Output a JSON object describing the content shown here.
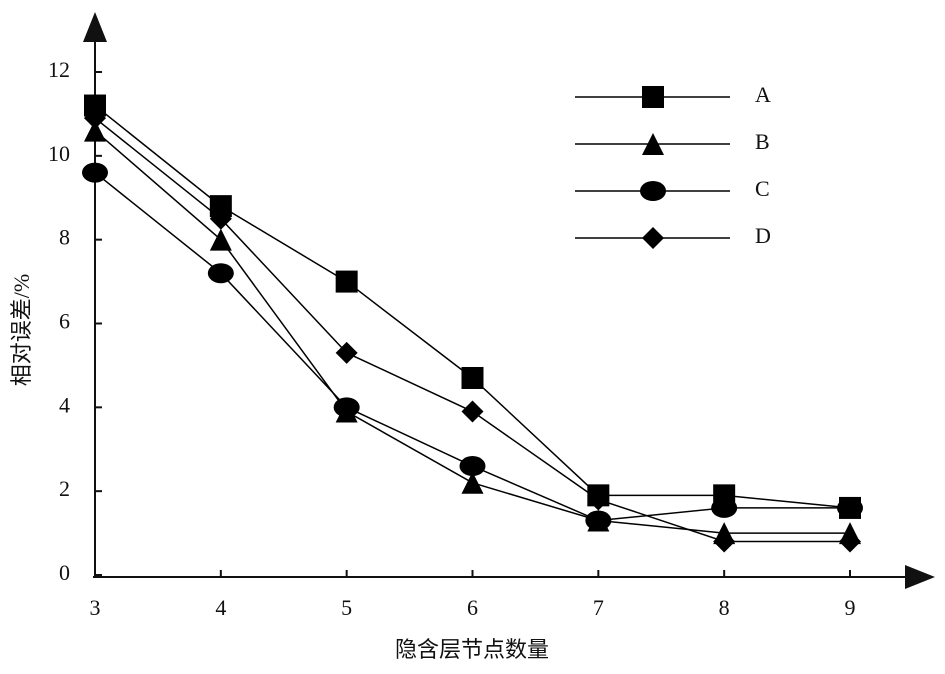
{
  "chart_data": {
    "type": "line",
    "x_label": "隐含层节点数量",
    "y_label": "相对误差/%",
    "x": [
      3,
      4,
      5,
      6,
      7,
      8,
      9
    ],
    "xlim": [
      3,
      9
    ],
    "xticks": [
      3,
      4,
      5,
      6,
      7,
      8,
      9
    ],
    "ylim": [
      0,
      12
    ],
    "yticks": [
      0,
      2,
      4,
      6,
      8,
      10,
      12
    ],
    "legend": "upper right",
    "series": [
      {
        "name": "A",
        "color": "#000000",
        "marker": "square",
        "values": [
          11.2,
          8.8,
          7.0,
          4.7,
          1.9,
          1.9,
          1.6
        ]
      },
      {
        "name": "B",
        "color": "#000000",
        "marker": "triangle",
        "values": [
          10.6,
          8.0,
          3.9,
          2.2,
          1.3,
          1.0,
          1.0
        ]
      },
      {
        "name": "C",
        "color": "#000000",
        "marker": "circle",
        "values": [
          9.6,
          7.2,
          4.0,
          2.6,
          1.3,
          1.6,
          1.6
        ]
      },
      {
        "name": "D",
        "color": "#000000",
        "marker": "diamond",
        "values": [
          10.9,
          8.5,
          5.3,
          3.9,
          1.8,
          0.8,
          0.8
        ]
      }
    ]
  }
}
